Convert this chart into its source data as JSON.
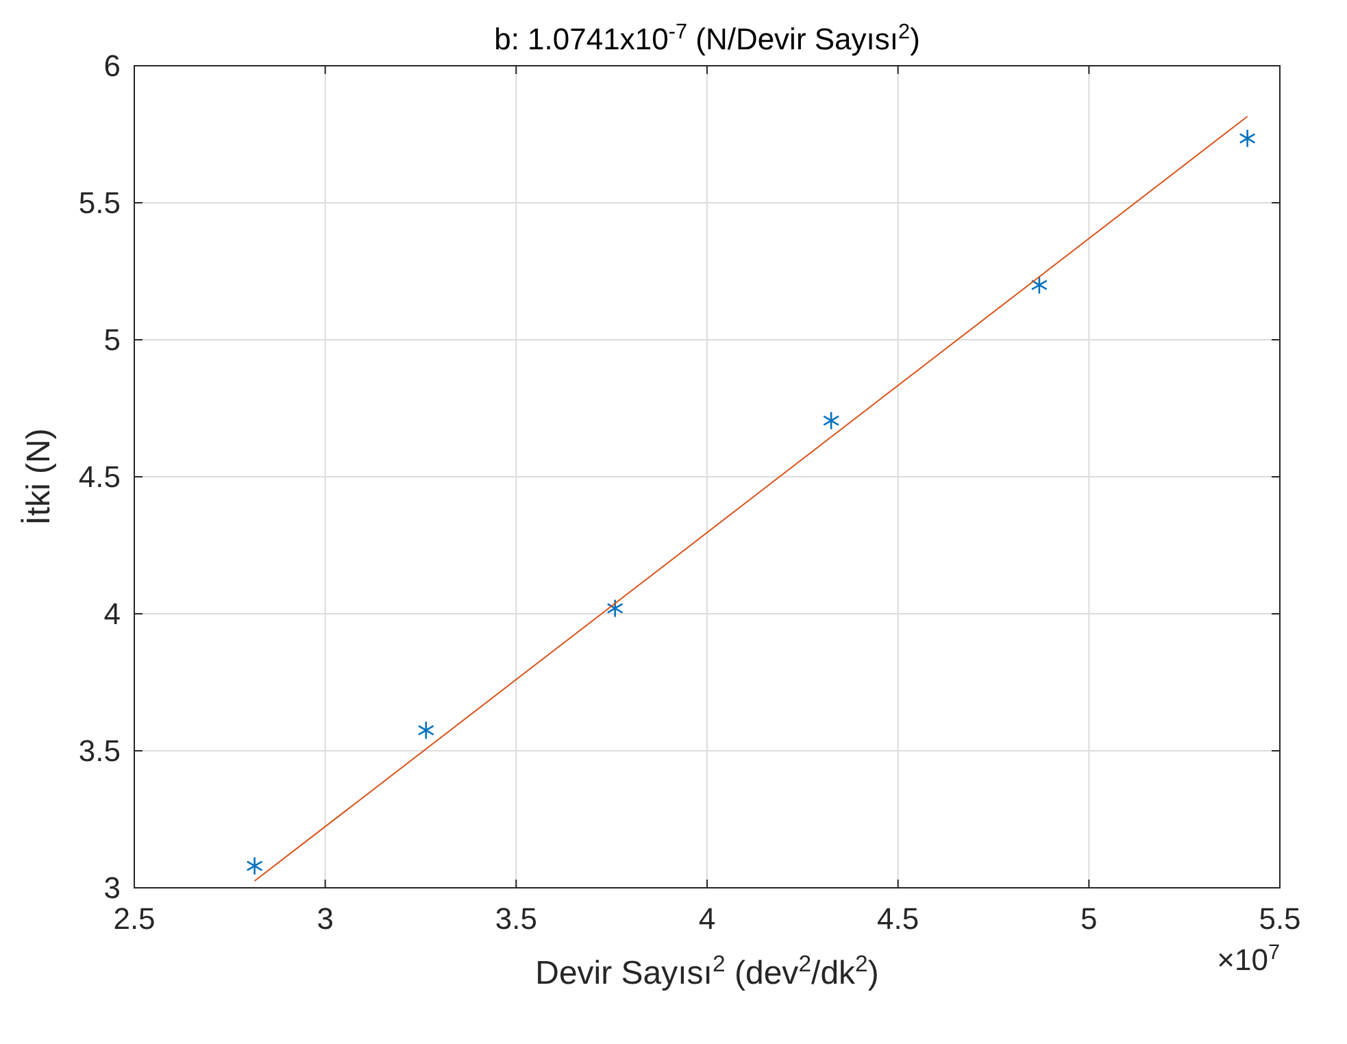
{
  "chart_data": {
    "type": "scatter",
    "title": "b: 1.0741x10$^{-7}$ (N/Devir Sayısı$^{2}$)",
    "xlabel": "Devir Sayısı$^{2}$ (dev$^{2}$/dk$^{2}$)",
    "ylabel": "İtki (N)",
    "annotations": [
      "×10$^{7}$"
    ],
    "xlim": [
      2.5,
      5.5
    ],
    "xticks": [
      2.5,
      3,
      3.5,
      4,
      4.5,
      5,
      5.5
    ],
    "ylim": [
      3,
      6
    ],
    "yticks": [
      3,
      3.5,
      4,
      4.5,
      5,
      5.5,
      6
    ],
    "grid": true,
    "series": [
      {
        "color": "#0072bd",
        "marker": "cross",
        "x": [
          2.815,
          3.264,
          3.759,
          4.325,
          4.87,
          5.415
        ],
        "values": [
          3.08,
          3.575,
          4.02,
          4.705,
          5.2,
          5.735
        ]
      },
      {
        "type": "line",
        "color": "#d95319",
        "line_style": "solid",
        "x": [
          2.815,
          5.415
        ],
        "values": [
          3.025,
          5.815
        ]
      }
    ]
  }
}
